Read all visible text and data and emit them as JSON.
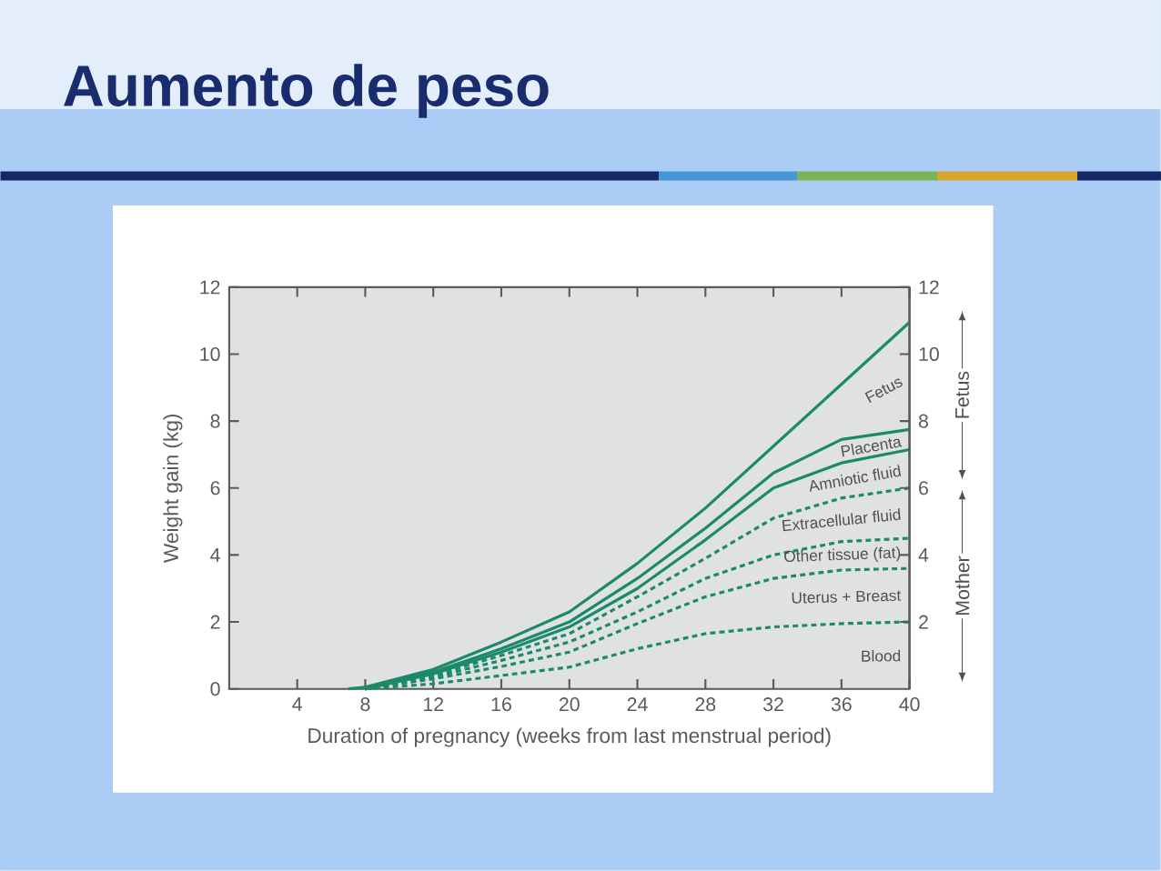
{
  "chart_data": {
    "type": "line",
    "title": "Aumento de peso",
    "xlabel": "Duration of pregnancy (weeks from last menstrual period)",
    "ylabel": "Weight gain (kg)",
    "x": [
      8,
      12,
      16,
      20,
      24,
      28,
      32,
      36,
      40
    ],
    "xlim": [
      0,
      40
    ],
    "xticks": [
      4,
      8,
      12,
      16,
      20,
      24,
      28,
      32,
      36,
      40
    ],
    "ylim": [
      0,
      12
    ],
    "yticks": [
      0,
      2,
      4,
      6,
      8,
      10,
      12
    ],
    "y2lim": [
      0,
      12
    ],
    "y2ticks": [
      2,
      4,
      6,
      8,
      10,
      12
    ],
    "annotations": [
      "Fetus",
      "Mother"
    ],
    "series": [
      {
        "name": "Fetus",
        "color": "#1b8a6b",
        "line_style": "solid",
        "x": [
          7,
          8,
          12,
          16,
          20,
          24,
          28,
          32,
          36,
          40
        ],
        "values": [
          0,
          0.05,
          0.58,
          1.4,
          2.3,
          3.75,
          5.4,
          7.25,
          9.1,
          10.95
        ]
      },
      {
        "name": "Placenta",
        "color": "#1b8a6b",
        "line_style": "solid",
        "values": [
          0,
          0.5,
          1.2,
          2.0,
          3.3,
          4.8,
          6.45,
          7.45,
          7.75
        ]
      },
      {
        "name": "Amniotic fluid",
        "color": "#1b8a6b",
        "line_style": "solid",
        "values": [
          0,
          0.45,
          1.1,
          1.85,
          3.0,
          4.45,
          6.0,
          6.75,
          7.15
        ]
      },
      {
        "name": "Extracellular fluid",
        "color": "#1b8a6b",
        "line_style": "dashed",
        "values": [
          0,
          0.4,
          1.0,
          1.65,
          2.75,
          3.9,
          5.1,
          5.7,
          6.0
        ]
      },
      {
        "name": "Other tissue (fat)",
        "color": "#1b8a6b",
        "line_style": "dashed",
        "values": [
          0,
          0.35,
          0.85,
          1.4,
          2.3,
          3.3,
          4.0,
          4.4,
          4.5
        ]
      },
      {
        "name": "Uterus + Breast",
        "color": "#1b8a6b",
        "line_style": "dashed",
        "values": [
          0,
          0.3,
          0.67,
          1.1,
          1.95,
          2.75,
          3.3,
          3.55,
          3.6
        ]
      },
      {
        "name": "Blood",
        "color": "#1b8a6b",
        "line_style": "dashed",
        "values": [
          0,
          0.15,
          0.4,
          0.65,
          1.2,
          1.65,
          1.85,
          1.95,
          2.0
        ]
      }
    ]
  }
}
